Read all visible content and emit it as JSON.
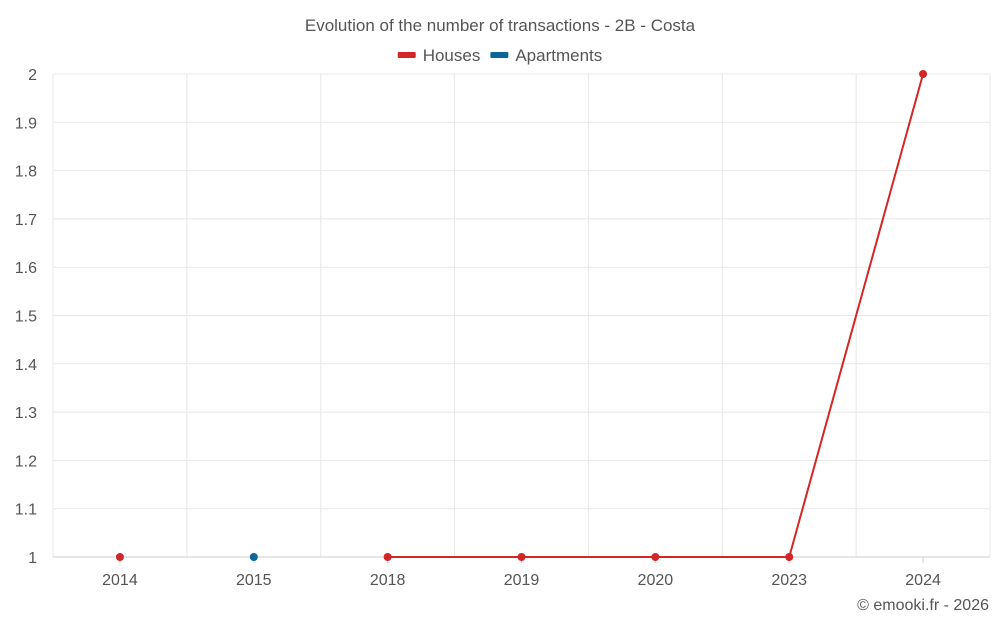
{
  "chart_data": {
    "type": "line",
    "title": "Evolution of the number of transactions - 2B - Costa",
    "categories": [
      "2014",
      "2015",
      "2018",
      "2019",
      "2020",
      "2023",
      "2024"
    ],
    "ylim": [
      1,
      2
    ],
    "yticks": [
      "1",
      "1.1",
      "1.2",
      "1.3",
      "1.4",
      "1.5",
      "1.6",
      "1.7",
      "1.8",
      "1.9",
      "2"
    ],
    "grid": true,
    "legend_position": "top-center",
    "xlabel": "",
    "ylabel": "",
    "series": [
      {
        "name": "Houses",
        "color": "#d32626",
        "values": [
          1,
          null,
          1,
          1,
          1,
          1,
          2
        ]
      },
      {
        "name": "Apartments",
        "color": "#0d6699",
        "values": [
          null,
          1,
          null,
          null,
          null,
          null,
          null
        ]
      }
    ]
  },
  "credit": "© emooki.fr - 2026"
}
